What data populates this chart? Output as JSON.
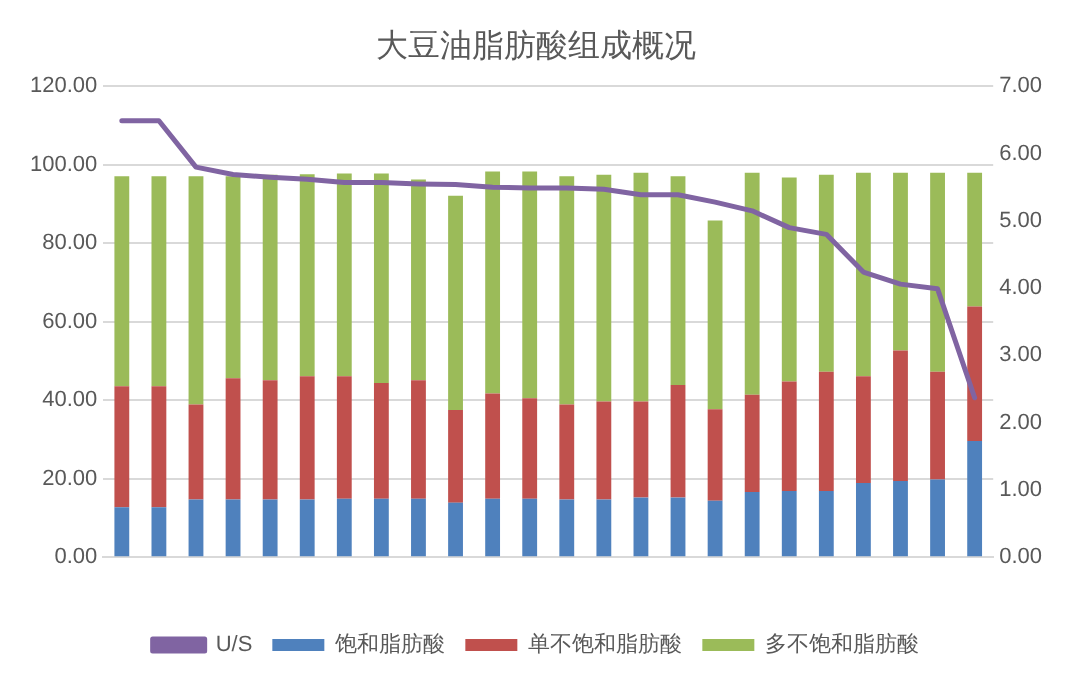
{
  "chart_data": {
    "type": "bar",
    "title": "大豆油脂肪酸组成概况",
    "stacked": true,
    "grid": "y",
    "legend": "bottom",
    "marker": "none",
    "categories": [
      null,
      null,
      null,
      null,
      null,
      null,
      null,
      null,
      null,
      null,
      null,
      null,
      null,
      null,
      null,
      null,
      null,
      null,
      null,
      null,
      null,
      null,
      null,
      null
    ],
    "series": [
      {
        "name": "饱和脂肪酸",
        "color": "#4f81bd",
        "values": [
          12.7,
          12.7,
          14.7,
          14.7,
          14.7,
          14.7,
          14.9,
          14.9,
          14.9,
          13.9,
          14.9,
          14.9,
          14.7,
          14.7,
          15.2,
          15.2,
          14.4,
          16.6,
          16.9,
          16.9,
          18.9,
          19.4,
          19.8,
          29.6
        ]
      },
      {
        "name": "单不饱和脂肪酸",
        "color": "#c0504d",
        "values": [
          30.9,
          30.9,
          24.2,
          30.9,
          30.4,
          31.4,
          31.2,
          29.5,
          30.2,
          23.6,
          26.8,
          25.6,
          24.2,
          25.0,
          24.5,
          28.7,
          23.3,
          24.8,
          27.9,
          30.4,
          27.2,
          33.3,
          27.5,
          34.3
        ]
      },
      {
        "name": "多不饱和脂肪酸",
        "color": "#9bbb59",
        "values": [
          53.5,
          53.5,
          58.2,
          51.5,
          52.4,
          51.5,
          51.7,
          53.4,
          51.2,
          54.6,
          56.6,
          57.8,
          58.2,
          57.8,
          58.3,
          53.2,
          48.1,
          56.6,
          52.0,
          50.2,
          51.9,
          45.3,
          50.7,
          34.1
        ]
      },
      {
        "name": "U/S",
        "type": "line",
        "axis": "y2",
        "color": "#8064a2",
        "values": [
          6.49,
          6.49,
          5.8,
          5.69,
          5.65,
          5.62,
          5.57,
          5.57,
          5.55,
          5.54,
          5.5,
          5.49,
          5.49,
          5.47,
          5.39,
          5.39,
          5.28,
          5.15,
          4.9,
          4.8,
          4.24,
          4.06,
          3.99,
          2.37
        ]
      }
    ],
    "ylim": [
      0,
      120
    ],
    "yticks": [
      {
        "value": 0,
        "label": "0.00"
      },
      {
        "value": 20,
        "label": "20.00"
      },
      {
        "value": 40,
        "label": "40.00"
      },
      {
        "value": 60,
        "label": "60.00"
      },
      {
        "value": 80,
        "label": "80.00"
      },
      {
        "value": 100,
        "label": "100.00"
      },
      {
        "value": 120,
        "label": "120.00"
      }
    ],
    "y2lim": [
      0,
      7
    ],
    "y2ticks": [
      {
        "value": 0,
        "label": "0.00"
      },
      {
        "value": 1,
        "label": "1.00"
      },
      {
        "value": 2,
        "label": "2.00"
      },
      {
        "value": 3,
        "label": "3.00"
      },
      {
        "value": 4,
        "label": "4.00"
      },
      {
        "value": 5,
        "label": "5.00"
      },
      {
        "value": 6,
        "label": "6.00"
      },
      {
        "value": 7,
        "label": "7.00"
      }
    ]
  }
}
